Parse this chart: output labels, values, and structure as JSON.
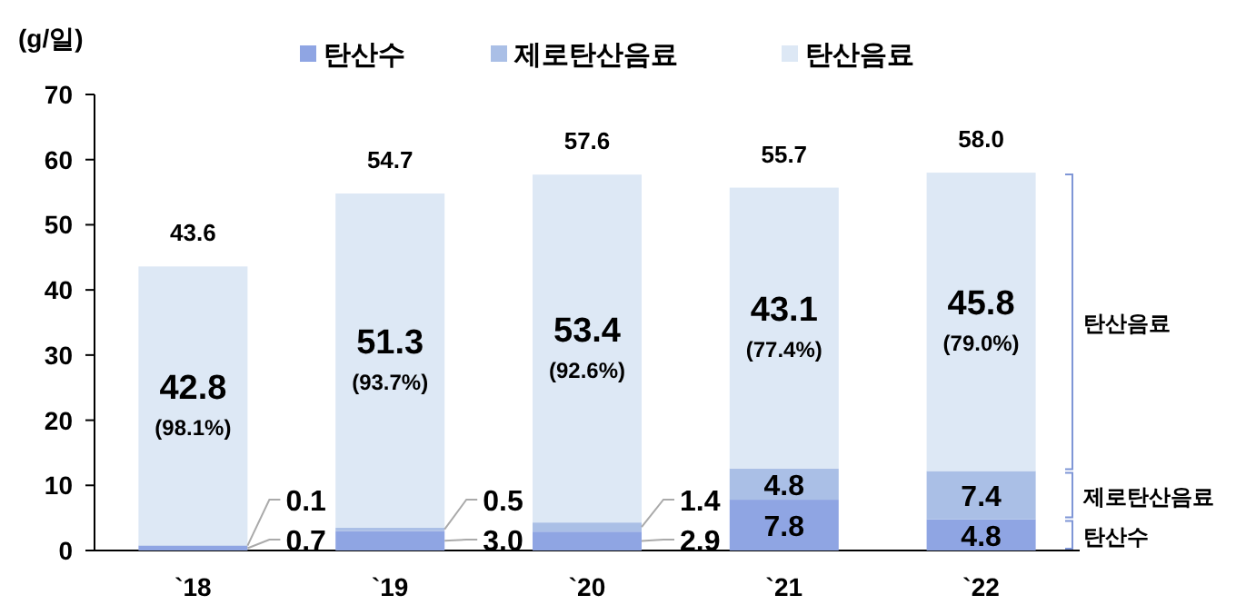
{
  "chart_data": {
    "type": "bar",
    "stacked": true,
    "ylabel": "(g/일)",
    "legend": "top",
    "categories": [
      "`18",
      "`19",
      "`20",
      "`21",
      "`22"
    ],
    "ylim": [
      0,
      70
    ],
    "yticks": [
      0,
      10,
      20,
      30,
      40,
      50,
      60,
      70
    ],
    "series": [
      {
        "name": "탄산수",
        "color": "#8fa5e3",
        "values": [
          0.7,
          3.0,
          2.9,
          7.8,
          4.8
        ],
        "value_labels": [
          "0.7",
          "3.0",
          "2.9",
          "7.8",
          "4.8"
        ]
      },
      {
        "name": "제로탄산음료",
        "color": "#aabfe6",
        "values": [
          0.1,
          0.5,
          1.4,
          4.8,
          7.4
        ],
        "value_labels": [
          "0.1",
          "0.5",
          "1.4",
          "4.8",
          "7.4"
        ]
      },
      {
        "name": "탄산음료",
        "color": "#dde8f5",
        "values": [
          42.8,
          51.3,
          53.4,
          43.1,
          45.8
        ],
        "value_labels": [
          "42.8\n(98.1%)",
          "51.3\n(93.7%)",
          "53.4\n(92.6%)",
          "43.1\n(77.4%)",
          "45.8\n(79.0%)"
        ]
      }
    ],
    "totals": [
      "43.6",
      "54.7",
      "57.6",
      "55.7",
      "58.0"
    ],
    "annotations": [
      "탄산음료",
      "제로탄산음료",
      "탄산수"
    ]
  }
}
